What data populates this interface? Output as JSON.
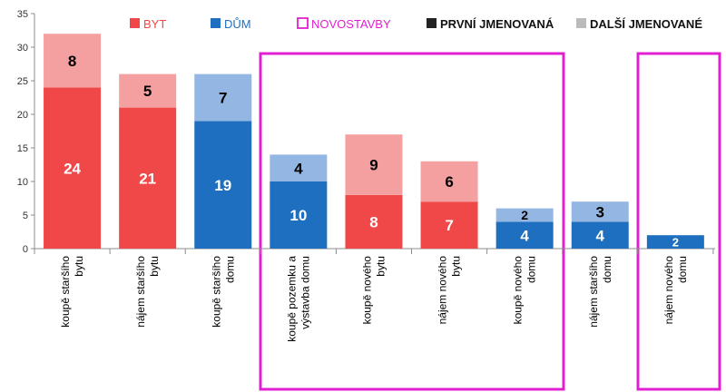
{
  "chart_data": {
    "type": "bar",
    "stacked": true,
    "y_ticks": [
      0,
      5,
      10,
      15,
      20,
      25,
      30,
      35
    ],
    "ylim": [
      0,
      35
    ],
    "grid": false,
    "categories": [
      {
        "label": [
          "koupě staršího",
          "bytu"
        ],
        "kind": "byt",
        "first": 24,
        "other": 8
      },
      {
        "label": [
          "nájem staršího",
          "bytu"
        ],
        "kind": "byt",
        "first": 21,
        "other": 5
      },
      {
        "label": [
          "koupě staršího",
          "domu"
        ],
        "kind": "dum",
        "first": 19,
        "other": 7
      },
      {
        "label": [
          "koupě pozemku a",
          "výstavba domu"
        ],
        "kind": "dum",
        "first": 10,
        "other": 4
      },
      {
        "label": [
          "koupě nového",
          "bytu"
        ],
        "kind": "byt",
        "first": 8,
        "other": 9
      },
      {
        "label": [
          "nájem nového",
          "bytu"
        ],
        "kind": "byt",
        "first": 7,
        "other": 6
      },
      {
        "label": [
          "koupě nového",
          "domu"
        ],
        "kind": "dum",
        "first": 4,
        "other": 2
      },
      {
        "label": [
          "nájem staršího",
          "domu"
        ],
        "kind": "dum",
        "first": 4,
        "other": 3
      },
      {
        "label": [
          "nájem nového",
          "domu"
        ],
        "kind": "dum",
        "first": 2,
        "other": null
      }
    ],
    "highlight_groups": [
      {
        "categories": [
          3,
          4,
          5,
          6
        ],
        "label": "NOVOSTAVBY"
      },
      {
        "categories": [
          8
        ],
        "label": "NOVOSTAVBY"
      }
    ],
    "legend": {
      "placement": "top",
      "items": [
        {
          "label": "BYT",
          "marker": "square",
          "color": "#f04848",
          "text_color": "#f04848"
        },
        {
          "label": "DŮM",
          "marker": "square",
          "color": "#1e6fbf",
          "text_color": "#1e6fbf"
        },
        {
          "label": "NOVOSTAVBY",
          "marker": "outline",
          "color": "#e020d0",
          "text_color": "#e020d0"
        },
        {
          "label": "PRVNÍ JMENOVANÁ",
          "marker": "square",
          "color": "#222222",
          "text_color": "#111111",
          "bold": true
        },
        {
          "label": "DALŠÍ JMENOVANÉ",
          "marker": "square",
          "color": "#bbbbbb",
          "text_color": "#111111",
          "bold": true
        }
      ]
    },
    "colors": {
      "byt_first": "#f04848",
      "byt_other": "#f5a0a0",
      "dum_first": "#1e6fbf",
      "dum_other": "#93b6e3",
      "highlight": "#e020d0",
      "axis": "#8c8c8c"
    }
  }
}
